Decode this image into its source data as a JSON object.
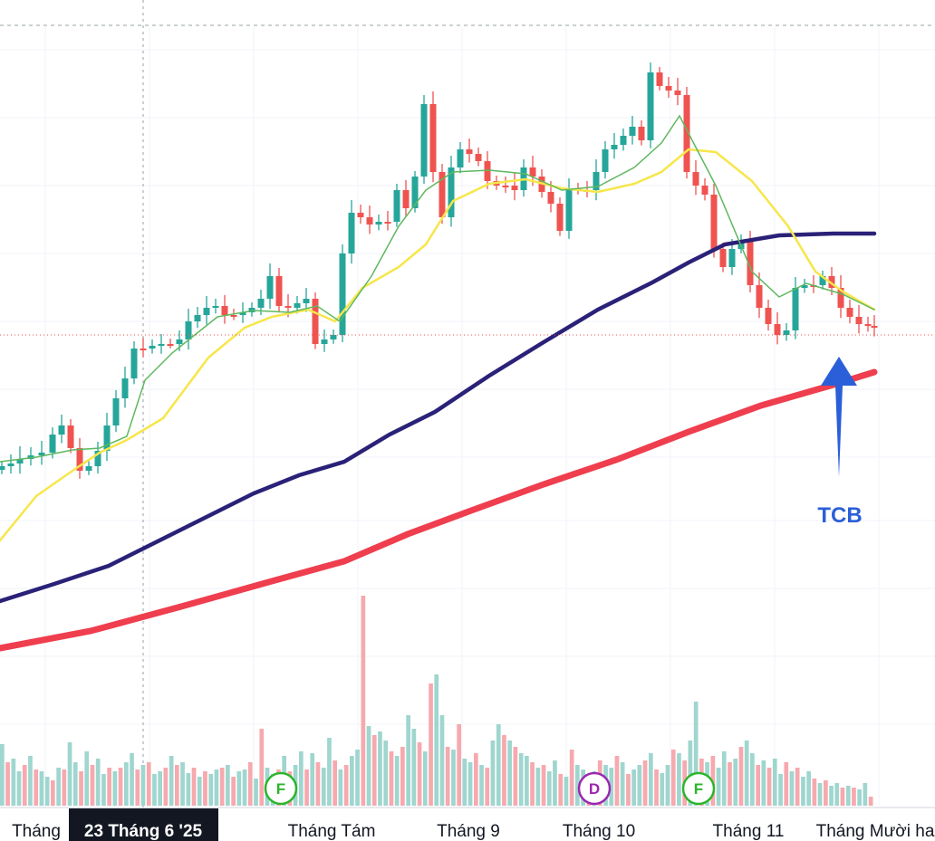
{
  "chart_data": {
    "type": "candlestick",
    "symbol": "TCB",
    "colors": {
      "up": "#26a69a",
      "down": "#ef5350",
      "volume_up": "#9fd6cf",
      "volume_down": "#f6a9ae",
      "ma_fast": "#5eb85e",
      "ma_slow": "#f7e64a",
      "ma_100": "#2a2178",
      "ma_200": "#ef3e4e",
      "arrow": "#2b5fd9"
    },
    "x_axis": {
      "ticks": [
        "Tháng",
        "23 Tháng 6 '25",
        "Tháng Tám",
        "Tháng 9",
        "Tháng 10",
        "Tháng 11",
        "Tháng Mười ha"
      ],
      "crosshair_label": "23 Tháng 6 '25"
    },
    "ma_200_points": [
      [
        0,
        716
      ],
      [
        100,
        697
      ],
      [
        200,
        670
      ],
      [
        300,
        642
      ],
      [
        380,
        620
      ],
      [
        450,
        590
      ],
      [
        520,
        564
      ],
      [
        600,
        535
      ],
      [
        680,
        508
      ],
      [
        760,
        477
      ],
      [
        840,
        448
      ],
      [
        920,
        425
      ],
      [
        965,
        411
      ]
    ],
    "ma_100_points": [
      [
        0,
        664
      ],
      [
        60,
        645
      ],
      [
        120,
        625
      ],
      [
        200,
        585
      ],
      [
        280,
        545
      ],
      [
        330,
        525
      ],
      [
        380,
        510
      ],
      [
        430,
        480
      ],
      [
        480,
        455
      ],
      [
        540,
        415
      ],
      [
        600,
        378
      ],
      [
        660,
        342
      ],
      [
        720,
        312
      ],
      [
        760,
        290
      ],
      [
        800,
        270
      ],
      [
        860,
        260
      ],
      [
        920,
        258
      ],
      [
        965,
        258
      ]
    ],
    "ma_slow_points": [
      [
        0,
        597
      ],
      [
        40,
        548
      ],
      [
        80,
        520
      ],
      [
        110,
        500
      ],
      [
        140,
        486
      ],
      [
        180,
        462
      ],
      [
        230,
        395
      ],
      [
        270,
        362
      ],
      [
        300,
        350
      ],
      [
        340,
        342
      ],
      [
        370,
        355
      ],
      [
        400,
        318
      ],
      [
        440,
        295
      ],
      [
        470,
        270
      ],
      [
        500,
        222
      ],
      [
        540,
        203
      ],
      [
        580,
        198
      ],
      [
        620,
        208
      ],
      [
        660,
        212
      ],
      [
        700,
        203
      ],
      [
        730,
        190
      ],
      [
        760,
        165
      ],
      [
        790,
        168
      ],
      [
        830,
        200
      ],
      [
        870,
        250
      ],
      [
        900,
        300
      ],
      [
        930,
        322
      ],
      [
        965,
        342
      ]
    ],
    "ma_fast_points": [
      [
        0,
        510
      ],
      [
        40,
        505
      ],
      [
        80,
        497
      ],
      [
        110,
        495
      ],
      [
        140,
        482
      ],
      [
        160,
        420
      ],
      [
        190,
        390
      ],
      [
        240,
        350
      ],
      [
        280,
        343
      ],
      [
        320,
        345
      ],
      [
        350,
        338
      ],
      [
        375,
        355
      ],
      [
        410,
        305
      ],
      [
        440,
        250
      ],
      [
        470,
        210
      ],
      [
        500,
        190
      ],
      [
        540,
        188
      ],
      [
        580,
        192
      ],
      [
        620,
        210
      ],
      [
        660,
        206
      ],
      [
        700,
        185
      ],
      [
        730,
        158
      ],
      [
        750,
        128
      ],
      [
        790,
        205
      ],
      [
        830,
        300
      ],
      [
        860,
        328
      ],
      [
        890,
        313
      ],
      [
        930,
        325
      ],
      [
        965,
        342
      ]
    ],
    "price_points": [
      [
        2,
        515
      ],
      [
        12,
        512
      ],
      [
        22,
        507
      ],
      [
        34,
        503
      ],
      [
        46,
        500
      ],
      [
        58,
        480
      ],
      [
        68,
        470
      ],
      [
        78,
        495
      ],
      [
        88,
        520
      ],
      [
        98,
        515
      ],
      [
        108,
        498
      ],
      [
        118,
        470
      ],
      [
        128,
        440
      ],
      [
        138,
        418
      ],
      [
        148,
        385
      ],
      [
        158,
        385
      ],
      [
        168,
        382
      ],
      [
        178,
        380
      ],
      [
        188,
        380
      ],
      [
        198,
        375
      ],
      [
        208,
        355
      ],
      [
        218,
        348
      ],
      [
        228,
        340
      ],
      [
        238,
        338
      ],
      [
        248,
        348
      ],
      [
        258,
        348
      ],
      [
        268,
        345
      ],
      [
        278,
        340
      ],
      [
        288,
        330
      ],
      [
        298,
        305
      ],
      [
        308,
        338
      ],
      [
        318,
        340
      ],
      [
        328,
        335
      ],
      [
        338,
        330
      ],
      [
        348,
        380
      ],
      [
        358,
        375
      ],
      [
        368,
        370
      ],
      [
        378,
        280
      ],
      [
        388,
        235
      ],
      [
        398,
        240
      ],
      [
        408,
        248
      ],
      [
        418,
        245
      ],
      [
        428,
        245
      ],
      [
        438,
        210
      ],
      [
        448,
        230
      ],
      [
        458,
        195
      ],
      [
        468,
        115
      ],
      [
        478,
        190
      ],
      [
        488,
        240
      ],
      [
        498,
        185
      ],
      [
        508,
        165
      ],
      [
        518,
        170
      ],
      [
        528,
        178
      ],
      [
        538,
        200
      ],
      [
        548,
        205
      ],
      [
        558,
        205
      ],
      [
        568,
        210
      ],
      [
        578,
        185
      ],
      [
        588,
        195
      ],
      [
        598,
        212
      ],
      [
        608,
        225
      ],
      [
        618,
        255
      ],
      [
        628,
        208
      ],
      [
        638,
        210
      ],
      [
        648,
        210
      ],
      [
        658,
        190
      ],
      [
        668,
        165
      ],
      [
        678,
        160
      ],
      [
        688,
        150
      ],
      [
        698,
        140
      ],
      [
        708,
        155
      ],
      [
        718,
        80
      ],
      [
        728,
        95
      ],
      [
        738,
        100
      ],
      [
        748,
        105
      ],
      [
        758,
        190
      ],
      [
        768,
        205
      ],
      [
        778,
        215
      ],
      [
        788,
        275
      ],
      [
        798,
        295
      ],
      [
        808,
        275
      ],
      [
        818,
        265
      ],
      [
        828,
        315
      ],
      [
        838,
        340
      ],
      [
        848,
        358
      ],
      [
        858,
        370
      ],
      [
        868,
        365
      ],
      [
        878,
        318
      ],
      [
        888,
        315
      ],
      [
        898,
        315
      ],
      [
        908,
        305
      ],
      [
        918,
        318
      ],
      [
        928,
        340
      ],
      [
        938,
        350
      ],
      [
        948,
        358
      ],
      [
        958,
        360
      ],
      [
        965,
        362
      ]
    ],
    "volume_heights": [
      68,
      48,
      52,
      38,
      45,
      55,
      40,
      38,
      32,
      28,
      42,
      40,
      70,
      48,
      38,
      60,
      45,
      52,
      35,
      42,
      38,
      42,
      48,
      58,
      40,
      45,
      48,
      35,
      38,
      42,
      55,
      45,
      48,
      36,
      42,
      32,
      38,
      35,
      40,
      42,
      45,
      32,
      38,
      40,
      48,
      30,
      85,
      42,
      35,
      40,
      55,
      38,
      45,
      60,
      40,
      58,
      48,
      42,
      75,
      50,
      40,
      45,
      55,
      62,
      232,
      88,
      78,
      82,
      72,
      60,
      55,
      65,
      100,
      85,
      70,
      60,
      135,
      145,
      100,
      65,
      62,
      90,
      52,
      48,
      58,
      45,
      42,
      72,
      90,
      78,
      72,
      65,
      58,
      55,
      48,
      42,
      45,
      38,
      50,
      35,
      32,
      62,
      45,
      40,
      32,
      38,
      50,
      45,
      42,
      55,
      48,
      35,
      40,
      45,
      50,
      58,
      40,
      36,
      45,
      62,
      58,
      50,
      72,
      115,
      52,
      48,
      55,
      42,
      60,
      48,
      52,
      65,
      72,
      58,
      45,
      50,
      42,
      52,
      35,
      48,
      38,
      42,
      32,
      38,
      30,
      25,
      28,
      22,
      25,
      20,
      22,
      20,
      18,
      25,
      10
    ],
    "events": [
      {
        "label": "F",
        "color": "#2bb52b"
      },
      {
        "label": "D",
        "color": "#9c27b0"
      },
      {
        "label": "F",
        "color": "#2bb52b"
      }
    ],
    "annotation": {
      "text": "TCB"
    },
    "last_price_line": true,
    "grid": true
  }
}
